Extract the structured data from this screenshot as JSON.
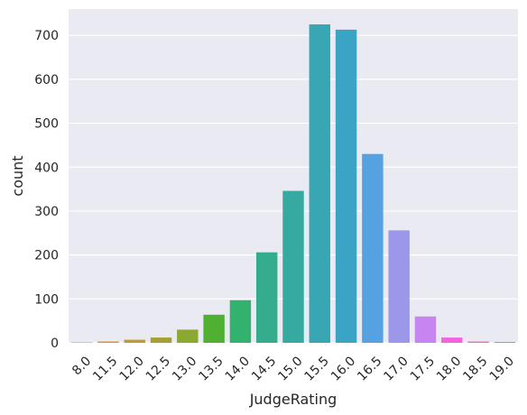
{
  "chart_data": {
    "type": "bar",
    "xlabel": "JudgeRating",
    "ylabel": "count",
    "categories": [
      "8.0",
      "11.5",
      "12.0",
      "12.5",
      "13.0",
      "13.5",
      "14.0",
      "14.5",
      "15.0",
      "15.5",
      "16.0",
      "16.5",
      "17.0",
      "17.5",
      "18.0",
      "18.5",
      "19.0"
    ],
    "values": [
      1,
      3,
      7,
      12,
      30,
      64,
      97,
      206,
      346,
      725,
      713,
      430,
      256,
      60,
      12,
      3,
      2
    ],
    "colors": [
      "#f77189",
      "#e98a33",
      "#c19a31",
      "#a6a030",
      "#8ba830",
      "#4fb031",
      "#33b16f",
      "#35ad8d",
      "#36aaa1",
      "#38a7b3",
      "#3ba3c4",
      "#56a1e2",
      "#9b97e9",
      "#c785f2",
      "#f562e1",
      "#f46bc1",
      "#f56da7"
    ],
    "ylim": [
      0,
      760
    ],
    "yticks": [
      0,
      100,
      200,
      300,
      400,
      500,
      600,
      700
    ],
    "grid": true,
    "background": "#eaeaf2"
  }
}
